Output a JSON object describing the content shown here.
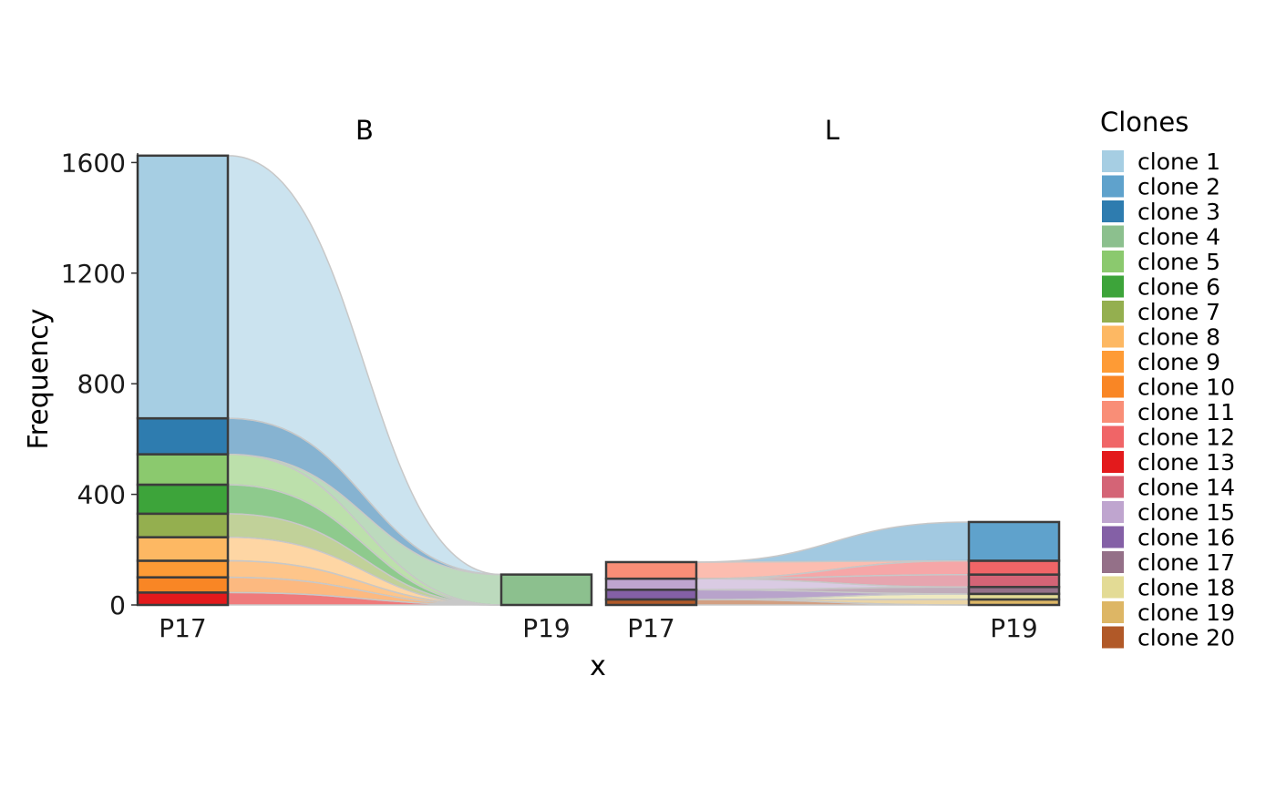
{
  "chart_data": {
    "type": "alluvial",
    "xlabel": "x",
    "ylabel": "Frequency",
    "ylim": [
      0,
      1650
    ],
    "yticks": [
      0,
      400,
      800,
      1200,
      1600
    ],
    "xticks": [
      "P17",
      "P19"
    ],
    "grid": false,
    "legend": {
      "title": "Clones",
      "placement": "right"
    },
    "clones": [
      {
        "name": "clone 1",
        "color": "#A6CEE3"
      },
      {
        "name": "clone 2",
        "color": "#5FA2CC"
      },
      {
        "name": "clone 3",
        "color": "#2E7CAF"
      },
      {
        "name": "clone 4",
        "color": "#8CC08E"
      },
      {
        "name": "clone 5",
        "color": "#8BC96E"
      },
      {
        "name": "clone 6",
        "color": "#3DA43A"
      },
      {
        "name": "clone 7",
        "color": "#94AF4F"
      },
      {
        "name": "clone 8",
        "color": "#FDB863"
      },
      {
        "name": "clone 9",
        "color": "#FE9B35"
      },
      {
        "name": "clone 10",
        "color": "#F98625"
      },
      {
        "name": "clone 11",
        "color": "#F98E77"
      },
      {
        "name": "clone 12",
        "color": "#F06567"
      },
      {
        "name": "clone 13",
        "color": "#E31A1C"
      },
      {
        "name": "clone 14",
        "color": "#D46476"
      },
      {
        "name": "clone 15",
        "color": "#BFA5CF"
      },
      {
        "name": "clone 16",
        "color": "#8460A6"
      },
      {
        "name": "clone 17",
        "color": "#947088"
      },
      {
        "name": "clone 18",
        "color": "#E3DB95"
      },
      {
        "name": "clone 19",
        "color": "#DDB665"
      },
      {
        "name": "clone 20",
        "color": "#B15928"
      }
    ],
    "panels": [
      {
        "strip": "B",
        "categories": [
          "P17",
          "P19"
        ],
        "flows": [
          {
            "clone": "clone 13",
            "values": [
              45,
              0
            ]
          },
          {
            "clone": "clone 10",
            "values": [
              55,
              0
            ]
          },
          {
            "clone": "clone 9",
            "values": [
              60,
              0
            ]
          },
          {
            "clone": "clone 8",
            "values": [
              85,
              0
            ]
          },
          {
            "clone": "clone 7",
            "values": [
              85,
              0
            ]
          },
          {
            "clone": "clone 6",
            "values": [
              105,
              0
            ]
          },
          {
            "clone": "clone 5",
            "values": [
              110,
              0
            ]
          },
          {
            "clone": "clone 4",
            "values": [
              0,
              110
            ]
          },
          {
            "clone": "clone 3",
            "values": [
              130,
              0
            ]
          },
          {
            "clone": "clone 1",
            "values": [
              950,
              0
            ]
          }
        ]
      },
      {
        "strip": "L",
        "categories": [
          "P17",
          "P19"
        ],
        "flows": [
          {
            "clone": "clone 20",
            "values": [
              20,
              0
            ]
          },
          {
            "clone": "clone 19",
            "values": [
              0,
              20
            ]
          },
          {
            "clone": "clone 18",
            "values": [
              0,
              20
            ]
          },
          {
            "clone": "clone 16",
            "values": [
              35,
              0
            ]
          },
          {
            "clone": "clone 17",
            "values": [
              0,
              25
            ]
          },
          {
            "clone": "clone 15",
            "values": [
              40,
              0
            ]
          },
          {
            "clone": "clone 14",
            "values": [
              0,
              45
            ]
          },
          {
            "clone": "clone 12",
            "values": [
              0,
              50
            ]
          },
          {
            "clone": "clone 11",
            "values": [
              60,
              0
            ]
          },
          {
            "clone": "clone 2",
            "values": [
              0,
              140
            ]
          }
        ]
      }
    ]
  }
}
